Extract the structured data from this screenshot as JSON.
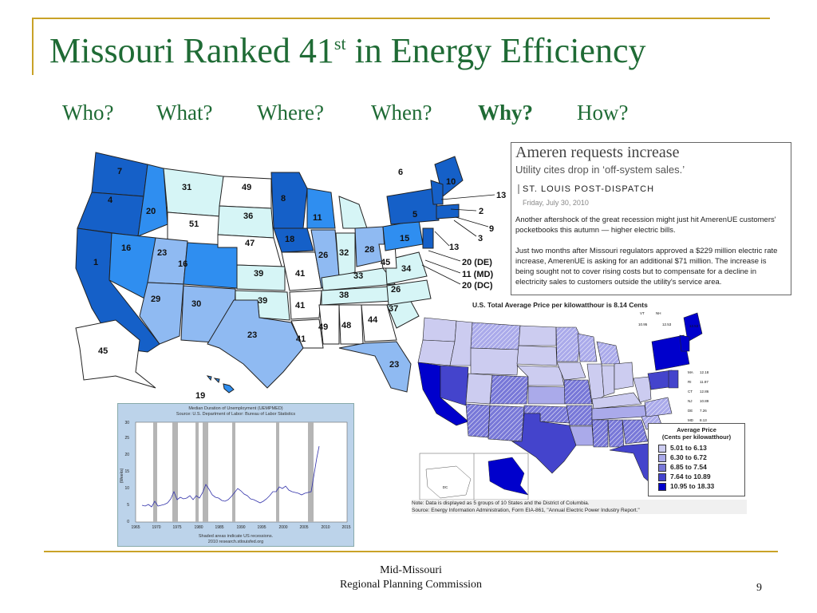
{
  "slide": {
    "title_main": "Missouri Ranked 41",
    "title_sup": "st",
    "title_end": " in Energy Efficiency",
    "questions": [
      "Who?",
      "What?",
      "Where?",
      "When?",
      "Why?",
      "How?"
    ],
    "page_number": "9",
    "footer_line1": "Mid-Missouri",
    "footer_line2": "Regional Planning Commission"
  },
  "colors": {
    "title": "#1f6b35",
    "rule": "#c9a227",
    "rank_1": "#1560c8",
    "rank_2": "#2f8ef0",
    "rank_3": "#8fbaf2",
    "rank_4": "#d6f5f6",
    "rank_5": "#ffffff"
  },
  "rank_map": {
    "state_ranks": [
      "7",
      "4",
      "1",
      "20",
      "16",
      "31",
      "49",
      "51",
      "36",
      "23",
      "16",
      "47",
      "29",
      "30",
      "39",
      "39",
      "41",
      "41",
      "23",
      "45",
      "19",
      "8",
      "11",
      "18",
      "26",
      "32",
      "28",
      "15",
      "45",
      "34",
      "33",
      "26",
      "38",
      "37",
      "44",
      "48",
      "49",
      "41",
      "23",
      "6",
      "10",
      "5"
    ],
    "callouts": [
      "13",
      "2",
      "9",
      "3",
      "13",
      "20 (DE)",
      "11 (MD)",
      "20 (DC)"
    ]
  },
  "news": {
    "headline": "Ameren requests increase",
    "subhead": "Utility cites drop in ‘off-system sales.’",
    "source": "ST. LOUIS POST-DISPATCH",
    "date": "Friday, July 30, 2010",
    "para1": "Another aftershock of the great recession might just hit AmerenUE customers' pocketbooks this autumn — higher electric bills.",
    "para2": "Just two months after Missouri regulators approved a $229 million electric rate increase, AmerenUE is asking for an additional $71 million. The increase is being sought not to cover rising costs but to compensate for a decline in electricity sales to customers outside the utility's service area."
  },
  "unemployment": {
    "title1": "Median Duration of Unemployment (UEMPMED)",
    "title2": "Source: U.S. Department of Labor: Bureau of Labor Statistics",
    "ylabel": "(Weeks)",
    "yticks": [
      "0",
      "5",
      "10",
      "15",
      "20",
      "25",
      "30"
    ],
    "xticks": [
      "1965",
      "1970",
      "1975",
      "1980",
      "1985",
      "1990",
      "1995",
      "2000",
      "2005",
      "2010",
      "2015"
    ],
    "foot1": "Shaded areas indicate US recessions.",
    "foot2": "2010 research.stlouisfed.org"
  },
  "price_map": {
    "title": "U.S. Total Average Price per kilowatthour is 8.14 Cents",
    "legend_title1": "Average Price",
    "legend_title2": "(Cents per kilowatthour)",
    "legend": [
      {
        "range": "5.01 to   6.13",
        "color": "#ccccf0"
      },
      {
        "range": "6.30 to   6.72",
        "color": "#aaaaea"
      },
      {
        "range": "6.85 to   7.54",
        "color": "#7878d8"
      },
      {
        "range": "7.64 to 10.89",
        "color": "#4444cc"
      },
      {
        "range": "10.95 to 18.33",
        "color": "#0000cc"
      }
    ],
    "note1": "Note: Data is displayed as 5 groups of 10 States and the District of Columbia.",
    "note2": "Source: Energy Information Administration, Form EIA-861, \"Annual Electric Power Industry Report.\"",
    "ne_labels": [
      "VT",
      "NH",
      "ME",
      "MA",
      "RI",
      "CT",
      "NJ",
      "DE",
      "MD",
      "DC"
    ],
    "ne_values": [
      "10.95",
      "12.53",
      "12.53",
      "12.18",
      "11.97",
      "12.86",
      "10.89",
      "7.26",
      "8.13",
      "9.18"
    ]
  }
}
